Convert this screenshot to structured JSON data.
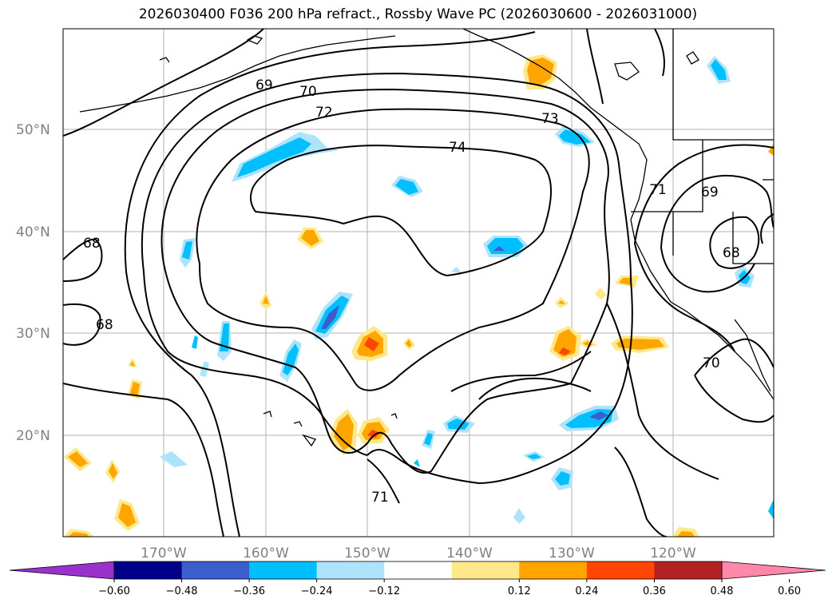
{
  "title": "2026030400 F036 200 hPa refract., Rossby Wave PC (2026030600 - 2026031000)",
  "lat_labels": [
    "50°N",
    "40°N",
    "30°N",
    "20°N"
  ],
  "lon_labels": [
    "170°W",
    "160°W",
    "150°W",
    "140°W",
    "130°W",
    "120°W"
  ],
  "contour_labels": [
    "69",
    "70",
    "72",
    "73",
    "74",
    "71",
    "69",
    "68",
    "68",
    "68",
    "71",
    "70"
  ],
  "colorbar": {
    "ticks": [
      "−0.60",
      "−0.48",
      "−0.36",
      "−0.24",
      "−0.12",
      "0.12",
      "0.24",
      "0.36",
      "0.48",
      "0.60"
    ],
    "colors": [
      "#9932cc",
      "#00008b",
      "#3a5fcd",
      "#00bfff",
      "#aee4fb",
      "#ffffff",
      "#ffe88a",
      "#ffa500",
      "#ff4500",
      "#b22222",
      "#ff88aa"
    ]
  }
}
